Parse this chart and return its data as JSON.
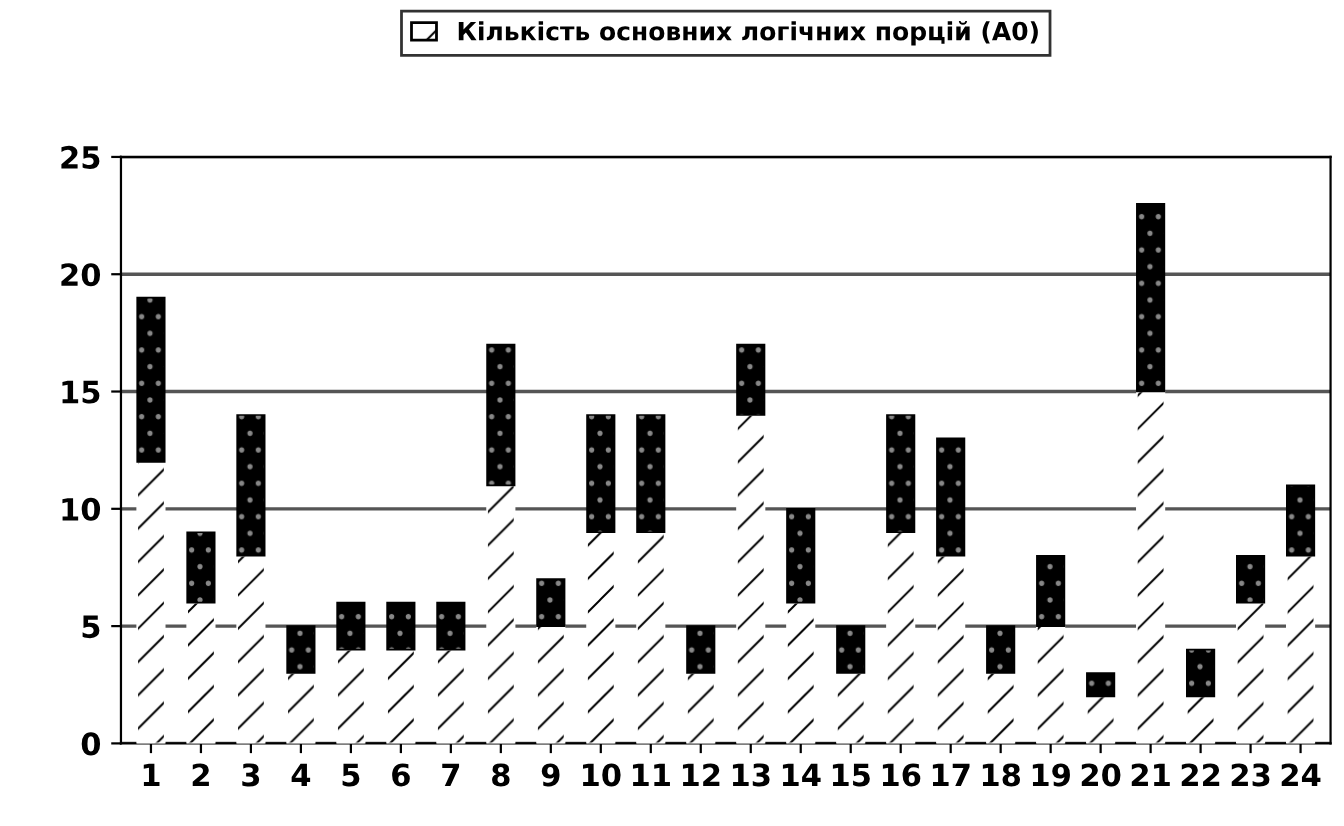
{
  "chart_data": {
    "type": "bar",
    "stacked": true,
    "categories": [
      "1",
      "2",
      "3",
      "4",
      "5",
      "6",
      "7",
      "8",
      "9",
      "10",
      "11",
      "12",
      "13",
      "14",
      "15",
      "16",
      "17",
      "18",
      "19",
      "20",
      "21",
      "22",
      "23",
      "24"
    ],
    "series": [
      {
        "name": "Кількість основних логічних порцій (А0)",
        "color": "#ffffff",
        "values": [
          12,
          6,
          8,
          3,
          4,
          4,
          4,
          11,
          5,
          9,
          9,
          3,
          14,
          6,
          3,
          9,
          8,
          3,
          5,
          2,
          15,
          2,
          6,
          8
        ]
      },
      {
        "color": "#000000",
        "values": [
          7,
          3,
          6,
          2,
          2,
          2,
          2,
          6,
          2,
          5,
          5,
          2,
          3,
          4,
          2,
          5,
          5,
          2,
          3,
          1,
          8,
          2,
          2,
          3
        ]
      }
    ],
    "ylim": [
      0,
      25
    ],
    "yticks": [
      0,
      5,
      10,
      15,
      20,
      25
    ],
    "grid": "y",
    "legend": "top"
  }
}
